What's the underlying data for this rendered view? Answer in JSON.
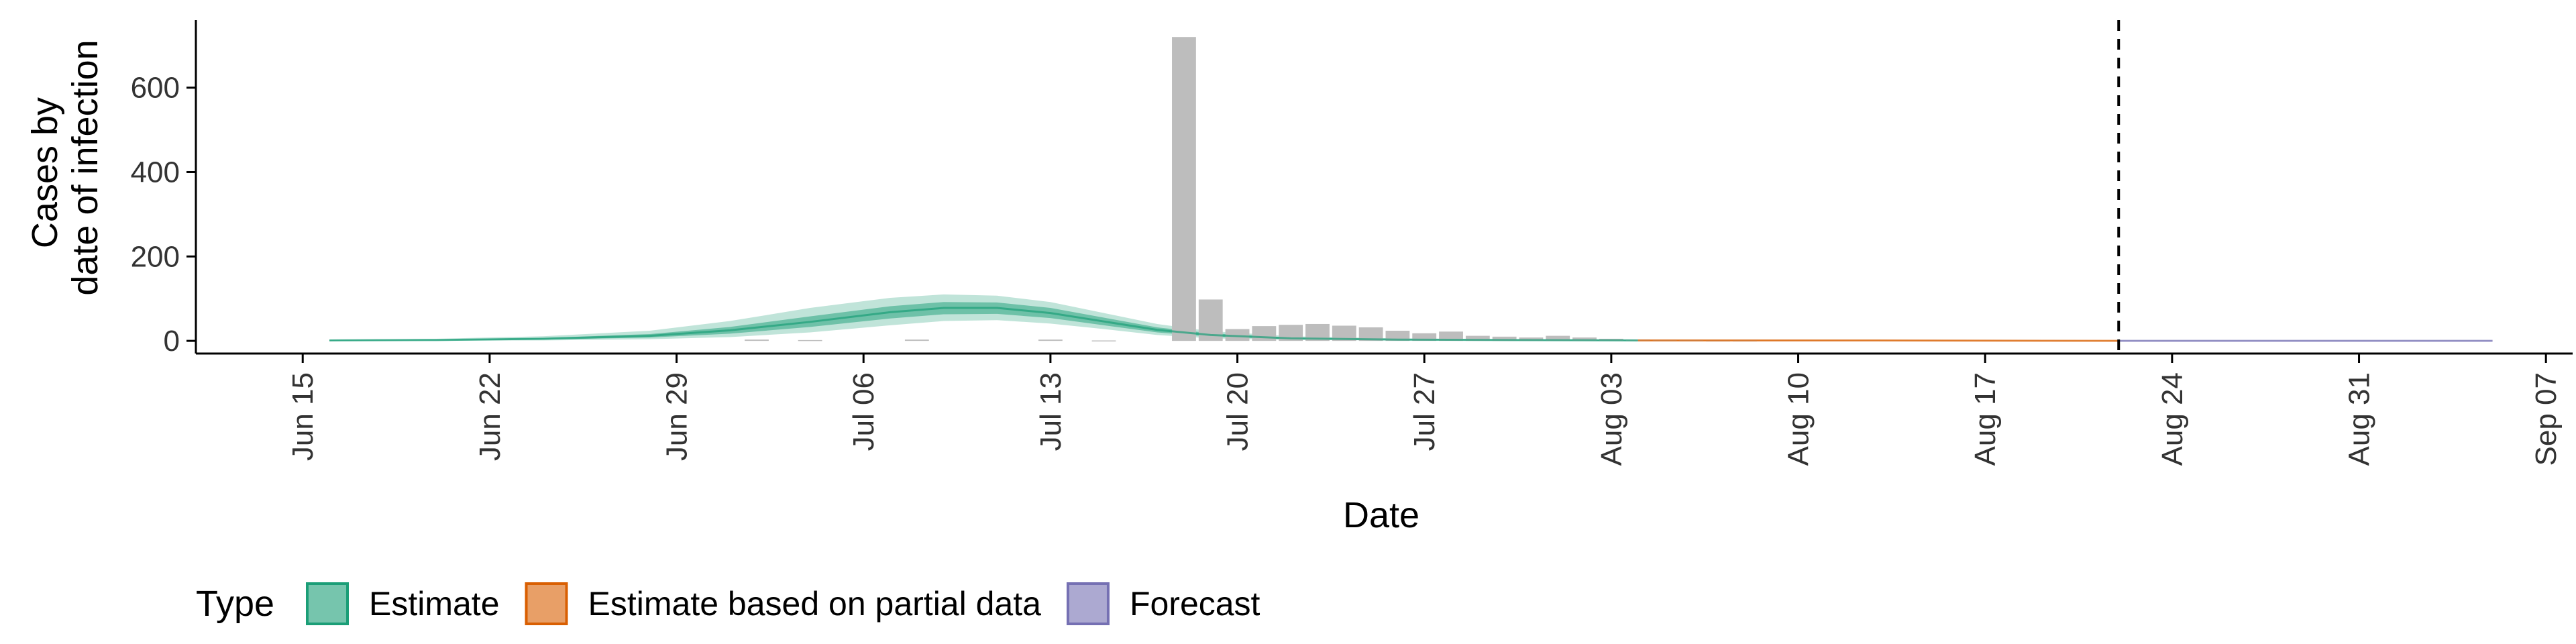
{
  "chart_data": {
    "type": "bar",
    "xlabel": "Date",
    "ylabel_lines": [
      "Cases by",
      "date of infection"
    ],
    "ylim": [
      -30,
      760
    ],
    "x_range": [
      "2020-06-11",
      "2020-09-08"
    ],
    "y_ticks": [
      0,
      200,
      400,
      600
    ],
    "y_tick_labels": [
      "0",
      "200",
      "400",
      "600"
    ],
    "x_ticks": [
      "2020-06-15",
      "2020-06-22",
      "2020-06-29",
      "2020-07-06",
      "2020-07-13",
      "2020-07-20",
      "2020-07-27",
      "2020-08-03",
      "2020-08-10",
      "2020-08-17",
      "2020-08-24",
      "2020-08-31",
      "2020-09-07"
    ],
    "x_tick_labels": [
      "Jun 15",
      "Jun 22",
      "Jun 29",
      "Jul 06",
      "Jul 13",
      "Jul 20",
      "Jul 27",
      "Aug 03",
      "Aug 10",
      "Aug 17",
      "Aug 24",
      "Aug 31",
      "Sep 07"
    ],
    "forecast_start": "2020-08-22",
    "colors": {
      "estimate": "#1b9e77",
      "partial": "#d95f02",
      "forecast": "#7570b3",
      "bars": "#bdbdbd",
      "axis": "#000000"
    },
    "reported_cases": [
      {
        "date": "2020-07-02",
        "value": 3
      },
      {
        "date": "2020-07-04",
        "value": 2
      },
      {
        "date": "2020-07-08",
        "value": 3
      },
      {
        "date": "2020-07-13",
        "value": 3
      },
      {
        "date": "2020-07-15",
        "value": 1
      },
      {
        "date": "2020-07-18",
        "value": 720
      },
      {
        "date": "2020-07-19",
        "value": 98
      },
      {
        "date": "2020-07-20",
        "value": 28
      },
      {
        "date": "2020-07-21",
        "value": 35
      },
      {
        "date": "2020-07-22",
        "value": 38
      },
      {
        "date": "2020-07-23",
        "value": 40
      },
      {
        "date": "2020-07-24",
        "value": 36
      },
      {
        "date": "2020-07-25",
        "value": 32
      },
      {
        "date": "2020-07-26",
        "value": 24
      },
      {
        "date": "2020-07-27",
        "value": 18
      },
      {
        "date": "2020-07-28",
        "value": 22
      },
      {
        "date": "2020-07-29",
        "value": 12
      },
      {
        "date": "2020-07-30",
        "value": 10
      },
      {
        "date": "2020-07-31",
        "value": 8
      },
      {
        "date": "2020-08-01",
        "value": 12
      },
      {
        "date": "2020-08-02",
        "value": 8
      },
      {
        "date": "2020-08-03",
        "value": 5
      },
      {
        "date": "2020-08-04",
        "value": 3
      },
      {
        "date": "2020-08-05",
        "value": 2
      },
      {
        "date": "2020-08-06",
        "value": 2
      },
      {
        "date": "2020-08-07",
        "value": 1
      },
      {
        "date": "2020-08-08",
        "value": 1
      }
    ],
    "estimate": [
      {
        "date": "2020-06-16",
        "median": 1,
        "lower50": 0,
        "upper50": 2,
        "lower90": 0,
        "upper90": 3
      },
      {
        "date": "2020-06-20",
        "median": 2,
        "lower50": 1,
        "upper50": 3,
        "lower90": 0,
        "upper90": 5
      },
      {
        "date": "2020-06-24",
        "median": 5,
        "lower50": 3,
        "upper50": 7,
        "lower90": 1,
        "upper90": 11
      },
      {
        "date": "2020-06-28",
        "median": 12,
        "lower50": 8,
        "upper50": 16,
        "lower90": 4,
        "upper90": 24
      },
      {
        "date": "2020-07-01",
        "median": 25,
        "lower50": 17,
        "upper50": 33,
        "lower90": 9,
        "upper90": 47
      },
      {
        "date": "2020-07-04",
        "median": 45,
        "lower50": 33,
        "upper50": 58,
        "lower90": 20,
        "upper90": 78
      },
      {
        "date": "2020-07-07",
        "median": 68,
        "lower50": 53,
        "upper50": 82,
        "lower90": 37,
        "upper90": 102
      },
      {
        "date": "2020-07-09",
        "median": 78,
        "lower50": 63,
        "upper50": 92,
        "lower90": 47,
        "upper90": 110
      },
      {
        "date": "2020-07-11",
        "median": 78,
        "lower50": 64,
        "upper50": 91,
        "lower90": 49,
        "upper90": 107
      },
      {
        "date": "2020-07-13",
        "median": 66,
        "lower50": 54,
        "upper50": 78,
        "lower90": 41,
        "upper90": 92
      },
      {
        "date": "2020-07-15",
        "median": 46,
        "lower50": 37,
        "upper50": 55,
        "lower90": 28,
        "upper90": 66
      },
      {
        "date": "2020-07-17",
        "median": 26,
        "lower50": 20,
        "upper50": 32,
        "lower90": 14,
        "upper90": 40
      },
      {
        "date": "2020-07-19",
        "median": 14,
        "lower50": 10,
        "upper50": 18,
        "lower90": 6,
        "upper90": 23
      },
      {
        "date": "2020-07-22",
        "median": 6,
        "lower50": 4,
        "upper50": 8,
        "lower90": 2,
        "upper90": 11
      },
      {
        "date": "2020-07-26",
        "median": 3,
        "lower50": 2,
        "upper50": 4,
        "lower90": 1,
        "upper90": 6
      },
      {
        "date": "2020-07-30",
        "median": 2,
        "lower50": 1,
        "upper50": 3,
        "lower90": 0,
        "upper90": 4
      },
      {
        "date": "2020-08-04",
        "median": 1,
        "lower50": 0,
        "upper50": 2,
        "lower90": 0,
        "upper90": 3
      }
    ],
    "partial_estimate": [
      {
        "date": "2020-08-04",
        "median": 1,
        "lower50": 0,
        "upper50": 2,
        "lower90": 0,
        "upper90": 3
      },
      {
        "date": "2020-08-12",
        "median": 1,
        "lower50": 0,
        "upper50": 1,
        "lower90": 0,
        "upper90": 2
      },
      {
        "date": "2020-08-22",
        "median": 0,
        "lower50": 0,
        "upper50": 1,
        "lower90": 0,
        "upper90": 1
      }
    ],
    "forecast": [
      {
        "date": "2020-08-22",
        "median": 0,
        "lower50": 0,
        "upper50": 1,
        "lower90": 0,
        "upper90": 1
      },
      {
        "date": "2020-09-05",
        "median": 0,
        "lower50": 0,
        "upper50": 1,
        "lower90": 0,
        "upper90": 1
      }
    ],
    "legend": {
      "title": "Type",
      "items": [
        {
          "label": "Estimate",
          "color": "#1b9e77"
        },
        {
          "label": "Estimate based on partial data",
          "color": "#d95f02"
        },
        {
          "label": "Forecast",
          "color": "#7570b3"
        }
      ]
    }
  }
}
